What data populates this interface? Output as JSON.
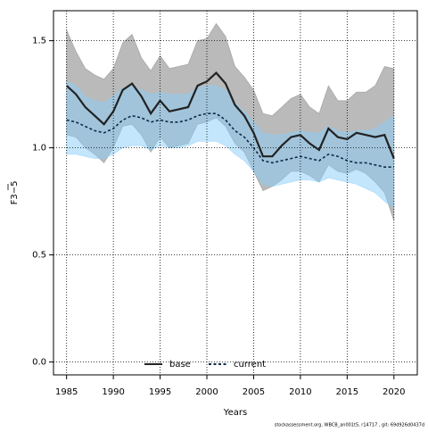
{
  "chart_data": {
    "type": "line",
    "xlabel": "Years",
    "ylabel": "F3−5",
    "footer": "stockassessment.org, WBCB_an001t5, r14717 , git: 69d926d0437d",
    "x": [
      1985,
      1986,
      1987,
      1988,
      1989,
      1990,
      1991,
      1992,
      1993,
      1994,
      1995,
      1996,
      1997,
      1998,
      1999,
      2000,
      2001,
      2002,
      2003,
      2004,
      2005,
      2006,
      2007,
      2008,
      2009,
      2010,
      2011,
      2012,
      2013,
      2014,
      2015,
      2016,
      2017,
      2018,
      2019,
      2020
    ],
    "series": [
      {
        "name": "base",
        "color": "#222222",
        "band_color": "rgba(140,140,140,0.6)",
        "dash": false,
        "values": [
          1.29,
          1.25,
          1.19,
          1.15,
          1.11,
          1.17,
          1.27,
          1.3,
          1.24,
          1.16,
          1.22,
          1.17,
          1.18,
          1.19,
          1.29,
          1.31,
          1.35,
          1.3,
          1.2,
          1.15,
          1.07,
          0.96,
          0.96,
          1.01,
          1.05,
          1.06,
          1.02,
          0.99,
          1.09,
          1.05,
          1.04,
          1.07,
          1.06,
          1.05,
          1.06,
          0.95
        ],
        "upper": [
          1.55,
          1.45,
          1.37,
          1.34,
          1.32,
          1.37,
          1.49,
          1.53,
          1.42,
          1.36,
          1.43,
          1.37,
          1.38,
          1.39,
          1.5,
          1.51,
          1.58,
          1.52,
          1.38,
          1.33,
          1.27,
          1.16,
          1.15,
          1.19,
          1.23,
          1.25,
          1.19,
          1.16,
          1.29,
          1.22,
          1.22,
          1.26,
          1.26,
          1.29,
          1.38,
          1.37
        ],
        "lower": [
          1.06,
          1.05,
          1.0,
          0.97,
          0.93,
          1.0,
          1.1,
          1.11,
          1.06,
          0.98,
          1.05,
          1.0,
          1.01,
          1.02,
          1.11,
          1.12,
          1.14,
          1.1,
          1.02,
          0.98,
          0.89,
          0.8,
          0.82,
          0.85,
          0.89,
          0.89,
          0.87,
          0.84,
          0.92,
          0.89,
          0.88,
          0.9,
          0.88,
          0.84,
          0.79,
          0.66
        ]
      },
      {
        "name": "current",
        "color": "#0d2a4a",
        "band_color": "rgba(135,206,250,0.5)",
        "dash": true,
        "values": [
          1.13,
          1.12,
          1.1,
          1.08,
          1.07,
          1.09,
          1.13,
          1.15,
          1.14,
          1.12,
          1.13,
          1.12,
          1.12,
          1.13,
          1.15,
          1.16,
          1.16,
          1.13,
          1.08,
          1.05,
          1.0,
          0.94,
          0.93,
          0.94,
          0.95,
          0.96,
          0.95,
          0.94,
          0.97,
          0.96,
          0.94,
          0.93,
          0.93,
          0.92,
          0.91,
          0.91
        ],
        "upper": [
          1.31,
          1.29,
          1.24,
          1.22,
          1.21,
          1.24,
          1.28,
          1.29,
          1.27,
          1.25,
          1.26,
          1.25,
          1.25,
          1.25,
          1.28,
          1.29,
          1.29,
          1.27,
          1.21,
          1.17,
          1.12,
          1.07,
          1.06,
          1.06,
          1.07,
          1.08,
          1.07,
          1.07,
          1.1,
          1.08,
          1.07,
          1.08,
          1.08,
          1.09,
          1.12,
          1.15
        ],
        "lower": [
          0.97,
          0.97,
          0.96,
          0.95,
          0.95,
          0.97,
          1.0,
          1.01,
          1.01,
          0.99,
          1.01,
          1.0,
          1.0,
          1.01,
          1.03,
          1.03,
          1.03,
          1.01,
          0.97,
          0.94,
          0.89,
          0.83,
          0.82,
          0.83,
          0.84,
          0.85,
          0.85,
          0.84,
          0.86,
          0.85,
          0.84,
          0.83,
          0.81,
          0.79,
          0.75,
          0.72
        ]
      }
    ],
    "xlim": [
      1983.6,
      2022.5
    ],
    "ylim": [
      -0.06,
      1.64
    ],
    "xticks": [
      1985,
      1990,
      1995,
      2000,
      2005,
      2010,
      2015,
      2020
    ],
    "yticks": [
      {
        "value": 0,
        "label": "0.0"
      },
      0.5,
      {
        "value": 1,
        "label": "1.0"
      },
      1.5
    ],
    "grid": true,
    "legend": "bottom"
  }
}
